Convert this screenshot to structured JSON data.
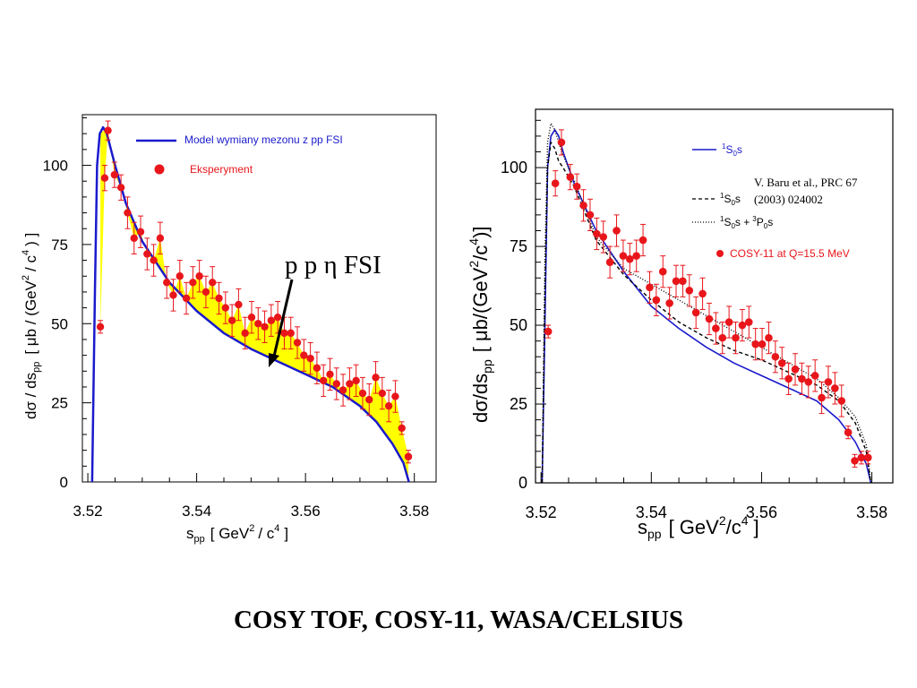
{
  "slide": {
    "caption": "COSY TOF, COSY-11, WASA/CELSIUS"
  },
  "colors": {
    "model": "#1a1acc",
    "data": "#e8161b",
    "fill": "#ffff00",
    "axis": "#000000"
  },
  "chart_data": [
    {
      "type": "scatter",
      "title": "",
      "xlabel": {
        "main": "s",
        "sub": "pp",
        "unit": "[ GeV",
        "sup": "2",
        "tail": "/ c",
        "sup2": "4",
        "close": "]"
      },
      "ylabel": {
        "main": "dσ / ds",
        "sub": "pp",
        "rest": "[ μb / (GeV",
        "sup": "2",
        "tail": "/ c",
        "sup2": "4",
        "close": ") ]"
      },
      "xlim": [
        3.519,
        3.584
      ],
      "ylim": [
        0,
        116
      ],
      "xticks": [
        3.52,
        3.54,
        3.56,
        3.58
      ],
      "xtick_labels": [
        "3.52",
        "3.54",
        "3.56",
        "3.58"
      ],
      "yticks": [
        0,
        25,
        50,
        75,
        100
      ],
      "ytick_labels": [
        "0",
        "25",
        "50",
        "75",
        "100"
      ],
      "legend": [
        {
          "label": "Model wymiany mezonu z pp FSI",
          "kind": "line"
        },
        {
          "label": "Eksperyment",
          "kind": "marker"
        }
      ],
      "annotation": {
        "text": "p p η FSI"
      },
      "series": [
        {
          "name": "Model wymiany mezonu z pp FSI",
          "kind": "line",
          "x": [
            3.5208,
            3.5213,
            3.5217,
            3.5222,
            3.5228,
            3.5235,
            3.525,
            3.527,
            3.53,
            3.535,
            3.54,
            3.545,
            3.55,
            3.555,
            3.56,
            3.565,
            3.57,
            3.573,
            3.576,
            3.578,
            3.579
          ],
          "y": [
            0,
            60,
            100,
            110,
            112,
            110,
            100,
            88,
            76,
            63,
            54,
            47,
            42,
            38,
            34,
            30,
            24,
            19,
            12,
            6,
            0
          ]
        },
        {
          "name": "Eksperyment",
          "kind": "points",
          "x": [
            3.5223,
            3.5231,
            3.5237,
            3.5249,
            3.5261,
            3.5273,
            3.5285,
            3.5297,
            3.5309,
            3.5321,
            3.5333,
            3.5345,
            3.5357,
            3.5369,
            3.5381,
            3.5393,
            3.5405,
            3.5417,
            3.5429,
            3.5441,
            3.5453,
            3.5465,
            3.5477,
            3.5489,
            3.5501,
            3.5513,
            3.5525,
            3.5537,
            3.5549,
            3.5561,
            3.5573,
            3.5585,
            3.5597,
            3.5609,
            3.5621,
            3.5633,
            3.5645,
            3.5657,
            3.5669,
            3.5681,
            3.5693,
            3.5705,
            3.5717,
            3.5729,
            3.5741,
            3.5753,
            3.5765,
            3.5777,
            3.5789
          ],
          "y": [
            49,
            96,
            111,
            97,
            93,
            85,
            77,
            79,
            72,
            70,
            77,
            63,
            59,
            65,
            58,
            63,
            65,
            60,
            63,
            58,
            55,
            51,
            56,
            47,
            52,
            50,
            49,
            51,
            52,
            47,
            47,
            44,
            40,
            39,
            36,
            32,
            34,
            31,
            29,
            31,
            32,
            28,
            26,
            33,
            28,
            24,
            27,
            17,
            8
          ],
          "err": [
            2,
            4,
            3,
            4,
            4,
            5,
            5,
            5,
            5,
            5,
            5,
            5,
            5,
            5,
            5,
            5,
            5,
            5,
            5,
            5,
            5,
            5,
            5,
            5,
            5,
            5,
            5,
            5,
            5,
            5,
            5,
            5,
            5,
            5,
            5,
            5,
            5,
            5,
            5,
            5,
            5,
            5,
            5,
            5,
            5,
            5,
            5,
            2,
            2
          ]
        }
      ]
    },
    {
      "type": "scatter",
      "title": "",
      "xlabel": {
        "main": "s",
        "sub": "pp",
        "unit": "[ GeV",
        "sup": "2",
        "tail": "/c",
        "sup2": "4",
        "close": "]"
      },
      "ylabel": {
        "main": "dσ/ds",
        "sub": "pp",
        "rest": "[ μb/(GeV",
        "sup": "2",
        "tail": "/c",
        "sup2": "4",
        "close": ")]"
      },
      "xlim": [
        3.519,
        3.5838
      ],
      "ylim": [
        0,
        118.5
      ],
      "xticks": [
        3.52,
        3.54,
        3.56,
        3.58
      ],
      "xtick_labels": [
        "3.52",
        "3.54",
        "3.56",
        "3.58"
      ],
      "yticks": [
        0,
        25,
        50,
        75,
        100
      ],
      "ytick_labels": [
        "0",
        "25",
        "50",
        "75",
        "100"
      ],
      "reference": {
        "line1": "V. Baru et al., PRC 67",
        "line2": "(2003) 024002"
      },
      "legend": [
        {
          "kind": "solid",
          "sup": "1",
          "base": "S",
          "sub": "0",
          "tail": "s"
        },
        {
          "kind": "dashed",
          "sup": "1",
          "base": "S",
          "sub": "0",
          "tail": "s"
        },
        {
          "kind": "dotted",
          "sup": "1",
          "base": "S",
          "sub": "0",
          "tail": "s +",
          "sup2": "3",
          "base2": "P",
          "sub2": "0",
          "tail2": "s"
        },
        {
          "kind": "marker",
          "label": "COSY-11  at Q=15.5 MeV"
        }
      ],
      "series": [
        {
          "name": "1S0s",
          "kind": "solid",
          "x": [
            3.5202,
            3.5207,
            3.5212,
            3.5218,
            3.5225,
            3.5232,
            3.524,
            3.526,
            3.53,
            3.535,
            3.54,
            3.545,
            3.55,
            3.555,
            3.56,
            3.565,
            3.57,
            3.574,
            3.577,
            3.579,
            3.5798
          ],
          "y": [
            0,
            50,
            100,
            110,
            112,
            110,
            105,
            95,
            80,
            67,
            56,
            49,
            43,
            38,
            34,
            30,
            26,
            20,
            13,
            6,
            0
          ]
        },
        {
          "name": "1S0s (Baru)",
          "kind": "dashed",
          "x": [
            3.5202,
            3.5207,
            3.5212,
            3.5218,
            3.5225,
            3.5232,
            3.524,
            3.526,
            3.53,
            3.535,
            3.54,
            3.545,
            3.55,
            3.555,
            3.56,
            3.565,
            3.57,
            3.574,
            3.577,
            3.579,
            3.5798
          ],
          "y": [
            0,
            60,
            100,
            108,
            106,
            102,
            100,
            94,
            77,
            66,
            58,
            51,
            46,
            42,
            39,
            35,
            31,
            26,
            19,
            10,
            0
          ]
        },
        {
          "name": "1S0s + 3P0s",
          "kind": "dotted",
          "x": [
            3.5202,
            3.5207,
            3.5212,
            3.5218,
            3.5225,
            3.5232,
            3.524,
            3.526,
            3.53,
            3.535,
            3.54,
            3.545,
            3.55,
            3.555,
            3.56,
            3.565,
            3.57,
            3.574,
            3.577,
            3.579,
            3.5798
          ],
          "y": [
            0,
            70,
            108,
            114,
            112,
            108,
            104,
            96,
            78,
            68,
            63,
            58,
            53,
            48,
            43,
            38,
            33,
            27,
            21,
            12,
            0
          ]
        },
        {
          "name": "COSY-11  at Q=15.5 MeV",
          "kind": "points",
          "x": [
            3.5213,
            3.5226,
            3.5237,
            3.5253,
            3.5265,
            3.5277,
            3.5289,
            3.5301,
            3.5313,
            3.5325,
            3.5337,
            3.5349,
            3.5361,
            3.5373,
            3.5385,
            3.5397,
            3.5409,
            3.5421,
            3.5433,
            3.5445,
            3.5457,
            3.5469,
            3.5481,
            3.5493,
            3.5505,
            3.5517,
            3.5529,
            3.5541,
            3.5553,
            3.5565,
            3.5577,
            3.5589,
            3.5601,
            3.5613,
            3.5625,
            3.5637,
            3.5649,
            3.5661,
            3.5673,
            3.5685,
            3.5697,
            3.5709,
            3.5721,
            3.5733,
            3.5745,
            3.5757,
            3.5769,
            3.5781,
            3.5793
          ],
          "y": [
            48,
            95,
            108,
            97,
            94,
            88,
            85,
            79,
            78,
            70,
            80,
            72,
            71,
            72,
            77,
            62,
            58,
            67,
            57,
            64,
            64,
            61,
            54,
            60,
            52,
            49,
            46,
            51,
            46,
            50,
            51,
            44,
            44,
            46,
            40,
            38,
            33,
            36,
            33,
            32,
            34,
            27,
            32,
            30,
            26,
            16,
            7,
            8,
            8
          ],
          "err": [
            2,
            4,
            4,
            4,
            4,
            5,
            5,
            5,
            5,
            5,
            5,
            5,
            5,
            5,
            5,
            5,
            5,
            5,
            5,
            5,
            5,
            5,
            5,
            5,
            5,
            5,
            5,
            5,
            5,
            5,
            5,
            5,
            5,
            5,
            5,
            5,
            5,
            5,
            5,
            5,
            5,
            5,
            5,
            5,
            5,
            2,
            2,
            2,
            2
          ]
        }
      ]
    }
  ]
}
